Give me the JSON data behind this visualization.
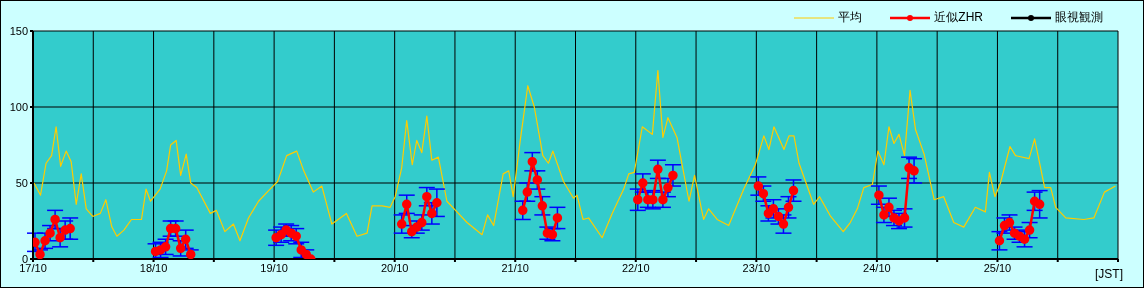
{
  "chart_data": {
    "type": "line",
    "xlabel": "[JST]",
    "xlim": [
      "--10-17",
      "--10-26"
    ],
    "xticks": [
      {
        "value": "--10-17",
        "label": "17/10"
      },
      {
        "value": "--10-17T12:00",
        "label": null
      },
      {
        "value": "--10-18",
        "label": "18/10"
      },
      {
        "value": "--10-18T12:00",
        "label": null
      },
      {
        "value": "--10-19",
        "label": "19/10"
      },
      {
        "value": "--10-19T12:00",
        "label": null
      },
      {
        "value": "--10-20",
        "label": "20/10"
      },
      {
        "value": "--10-20T12:00",
        "label": null
      },
      {
        "value": "--10-21",
        "label": "21/10"
      },
      {
        "value": "--10-21T12:00",
        "label": null
      },
      {
        "value": "--10-22",
        "label": "22/10"
      },
      {
        "value": "--10-22T12:00",
        "label": null
      },
      {
        "value": "--10-23",
        "label": "23/10"
      },
      {
        "value": "--10-23T12:00",
        "label": null
      },
      {
        "value": "--10-24",
        "label": "24/10"
      },
      {
        "value": "--10-24T12:00",
        "label": null
      },
      {
        "value": "--10-25",
        "label": "25/10"
      },
      {
        "value": "--10-25T12:00",
        "label": null
      },
      {
        "value": "--10-26",
        "label": null
      }
    ],
    "ylim": [
      0,
      150
    ],
    "yticks": [
      0,
      50,
      100,
      150
    ],
    "grid": true,
    "legend": "top right",
    "series": [
      {
        "name": "平均",
        "color": "#ffcc00",
        "marker": "none",
        "x": [
          "--10-17T00:12",
          "--10-17T01:30",
          "--10-17T02:36",
          "--10-17T03:42",
          "--10-17T04:36",
          "--10-17T05:30",
          "--10-17T06:36",
          "--10-17T07:36",
          "--10-17T08:36",
          "--10-17T09:36",
          "--10-17T10:36",
          "--10-17T11:54",
          "--10-17T13:24",
          "--10-17T14:30",
          "--10-17T15:42",
          "--10-17T16:42",
          "--10-17T18:06",
          "--10-17T19:36",
          "--10-17T21:36",
          "--10-17T22:30",
          "--10-17T23:24",
          "--10-18T01:18",
          "--10-18T02:36",
          "--10-18T03:24",
          "--10-18T04:30",
          "--10-18T05:24",
          "--10-18T06:30",
          "--10-18T07:24",
          "--10-18T08:36",
          "--10-18T11:18",
          "--10-18T12:30",
          "--10-18T14:12",
          "--10-18T15:54",
          "--10-18T17:12",
          "--10-18T18:54",
          "--10-18T20:54",
          "--10-18T22:54",
          "--10-19T00:42",
          "--10-19T02:30",
          "--10-19T04:30",
          "--10-19T05:54",
          "--10-19T07:48",
          "--10-19T09:30",
          "--10-19T11:30",
          "--10-19T14:24",
          "--10-19T16:30",
          "--10-19T18:30",
          "--10-19T19:30",
          "--10-19T21:30",
          "--10-19T23:06",
          "--10-20T00:06",
          "--10-20T01:24",
          "--10-20T02:24",
          "--10-20T03:30",
          "--10-20T04:24",
          "--10-20T05:24",
          "--10-20T06:24",
          "--10-20T07:24",
          "--10-20T08:42",
          "--10-20T10:24",
          "--10-20T12:24",
          "--10-20T14:24",
          "--10-20T17:24",
          "--10-20T18:30",
          "--10-20T19:42",
          "--10-20T21:36",
          "--10-20T22:42",
          "--10-20T23:36",
          "--10-21T01:00",
          "--10-21T02:30",
          "--10-21T03:48",
          "--10-21T05:30",
          "--10-21T06:36",
          "--10-21T07:30",
          "--10-21T09:36",
          "--10-21T11:36",
          "--10-21T12:18",
          "--10-21T13:30",
          "--10-21T14:36",
          "--10-21T17:18",
          "--10-21T19:18",
          "--10-21T21:36",
          "--10-21T22:36",
          "--10-21T23:42",
          "--10-22T01:18",
          "--10-22T03:18",
          "--10-22T04:24",
          "--10-22T05:24",
          "--10-22T06:24",
          "--10-22T08:12",
          "--10-22T10:36",
          "--10-22T11:42",
          "--10-22T13:30",
          "--10-22T14:30",
          "--10-22T16:12",
          "--10-22T18:30",
          "--10-22T21:30",
          "--10-22T23:48",
          "--10-23T01:30",
          "--10-23T02:30",
          "--10-23T03:30",
          "--10-23T05:30",
          "--10-23T06:30",
          "--10-23T07:30",
          "--10-23T08:30",
          "--10-23T11:24",
          "--10-23T12:36",
          "--10-23T14:48",
          "--10-23T17:18",
          "--10-23T18:42",
          "--10-23T20:06",
          "--10-23T21:24",
          "--10-23T23:06",
          "--10-24T00:12",
          "--10-24T01:24",
          "--10-24T02:24",
          "--10-24T03:24",
          "--10-24T04:24",
          "--10-24T05:30",
          "--10-24T06:36",
          "--10-24T07:42",
          "--10-24T09:24",
          "--10-24T11:24",
          "--10-24T13:18",
          "--10-24T15:18",
          "--10-24T17:18",
          "--10-24T19:36",
          "--10-24T21:36",
          "--10-24T22:24",
          "--10-24T23:30",
          "--10-25T00:36",
          "--10-25T02:30",
          "--10-25T03:36",
          "--10-25T06:18",
          "--10-25T07:24",
          "--10-25T09:24",
          "--10-25T10:36",
          "--10-25T11:36",
          "--10-25T13:36",
          "--10-25T17:12",
          "--10-25T19:12",
          "--10-25T21:18",
          "--10-25T23:30"
        ],
        "values": [
          50,
          42,
          63,
          68,
          87,
          61,
          71,
          64,
          36,
          56,
          33,
          28,
          30,
          39,
          21,
          15,
          19,
          26,
          26,
          46,
          38,
          46,
          58,
          75,
          78,
          55,
          69,
          50,
          47,
          30,
          32,
          18,
          23,
          12,
          27,
          38,
          45,
          51,
          68,
          71,
          58,
          44,
          48,
          23,
          30,
          15,
          17,
          35,
          35,
          34,
          41,
          60,
          91,
          62,
          78,
          70,
          94,
          65,
          67,
          38,
          31,
          24,
          16,
          29,
          22,
          56,
          58,
          41,
          78,
          114,
          100,
          68,
          63,
          71,
          51,
          40,
          42,
          26,
          27,
          14,
          30,
          46,
          56,
          57,
          87,
          82,
          124,
          80,
          93,
          80,
          38,
          55,
          26,
          33,
          26,
          22,
          46,
          62,
          81,
          72,
          87,
          72,
          81,
          81,
          63,
          36,
          41,
          28,
          18,
          24,
          33,
          47,
          49,
          71,
          62,
          87,
          76,
          82,
          68,
          111,
          85,
          69,
          39,
          41,
          24,
          21,
          34,
          31,
          57,
          41,
          50,
          74,
          68,
          66,
          79,
          47,
          47,
          34,
          27,
          26,
          27,
          44,
          48
        ]
      },
      {
        "name": "近似ZHR",
        "color": "#ff0000",
        "marker": "circle",
        "x": [
          "--10-17T00:24",
          "--10-17T01:24",
          "--10-17T02:24",
          "--10-17T03:24",
          "--10-17T04:24",
          "--10-17T05:24",
          "--10-17T06:24",
          "--10-17T07:24",
          "--10-17T16:00",
          "--10-18T00:24",
          "--10-18T01:24",
          "--10-18T02:24",
          "--10-18T03:24",
          "--10-18T04:24",
          "--10-18T05:24",
          "--10-18T06:24",
          "--10-18T07:24",
          "--10-18T16:00",
          "--10-19T00:24",
          "--10-19T01:24",
          "--10-19T02:24",
          "--10-19T03:24",
          "--10-19T04:24",
          "--10-19T05:24",
          "--10-19T06:24",
          "--10-19T07:18",
          "--10-19T16:00",
          "--10-20T01:24",
          "--10-20T02:24",
          "--10-20T03:24",
          "--10-20T04:24",
          "--10-20T05:24",
          "--10-20T06:24",
          "--10-20T07:24",
          "--10-20T08:24",
          "--10-20T16:00",
          "--10-21T01:30",
          "--10-21T02:24",
          "--10-21T03:24",
          "--10-21T04:24",
          "--10-21T05:24",
          "--10-21T06:24",
          "--10-21T07:24",
          "--10-21T08:24",
          "--10-21T16:00",
          "--10-22T00:24",
          "--10-22T01:24",
          "--10-22T02:24",
          "--10-22T03:24",
          "--10-22T04:24",
          "--10-22T05:24",
          "--10-22T06:24",
          "--10-22T07:24",
          "--10-22T16:00",
          "--10-23T00:24",
          "--10-23T01:24",
          "--10-23T02:24",
          "--10-23T03:24",
          "--10-23T04:24",
          "--10-23T05:24",
          "--10-23T06:24",
          "--10-23T07:24",
          "--10-23T16:00",
          "--10-24T00:24",
          "--10-24T01:24",
          "--10-24T02:24",
          "--10-24T03:24",
          "--10-24T04:24",
          "--10-24T05:30",
          "--10-24T06:24",
          "--10-24T07:24",
          "--10-24T16:00",
          "--10-25T00:24",
          "--10-25T01:24",
          "--10-25T02:24",
          "--10-25T03:24",
          "--10-25T04:24",
          "--10-25T05:24",
          "--10-25T06:24",
          "--10-25T07:24",
          "--10-25T08:24"
        ],
        "values": [
          11,
          3,
          12,
          17,
          26,
          14,
          19,
          20,
          null,
          5,
          6,
          8,
          20,
          20,
          7,
          13,
          3,
          null,
          14,
          16,
          19,
          17,
          15,
          6,
          3,
          0,
          null,
          23,
          36,
          18,
          21,
          24,
          41,
          30,
          37,
          null,
          32,
          44,
          64,
          52,
          35,
          17,
          16,
          27,
          null,
          39,
          50,
          39,
          39,
          59,
          39,
          47,
          55,
          null,
          48,
          43,
          30,
          33,
          28,
          23,
          34,
          45,
          null,
          42,
          29,
          34,
          27,
          25,
          27,
          60,
          58,
          null,
          12,
          22,
          24,
          17,
          15,
          13,
          19,
          38,
          36
        ],
        "errors": [
          6,
          3,
          5,
          5,
          6,
          6,
          6,
          7,
          null,
          5,
          5,
          5,
          5,
          5,
          5,
          6,
          3,
          null,
          5,
          5,
          4,
          5,
          5,
          5,
          3,
          null,
          null,
          6,
          6,
          4,
          4,
          5,
          6,
          7,
          9,
          null,
          6,
          6,
          6,
          6,
          6,
          4,
          4,
          7,
          null,
          7,
          6,
          5,
          6,
          6,
          5,
          6,
          7,
          null,
          6,
          5,
          5,
          6,
          5,
          6,
          7,
          7,
          null,
          6,
          5,
          6,
          5,
          5,
          6,
          7,
          8,
          null,
          6,
          5,
          5,
          4,
          4,
          5,
          5,
          6,
          9
        ]
      },
      {
        "name": "眼視観測",
        "color": "#000000",
        "marker": "circle"
      }
    ]
  }
}
